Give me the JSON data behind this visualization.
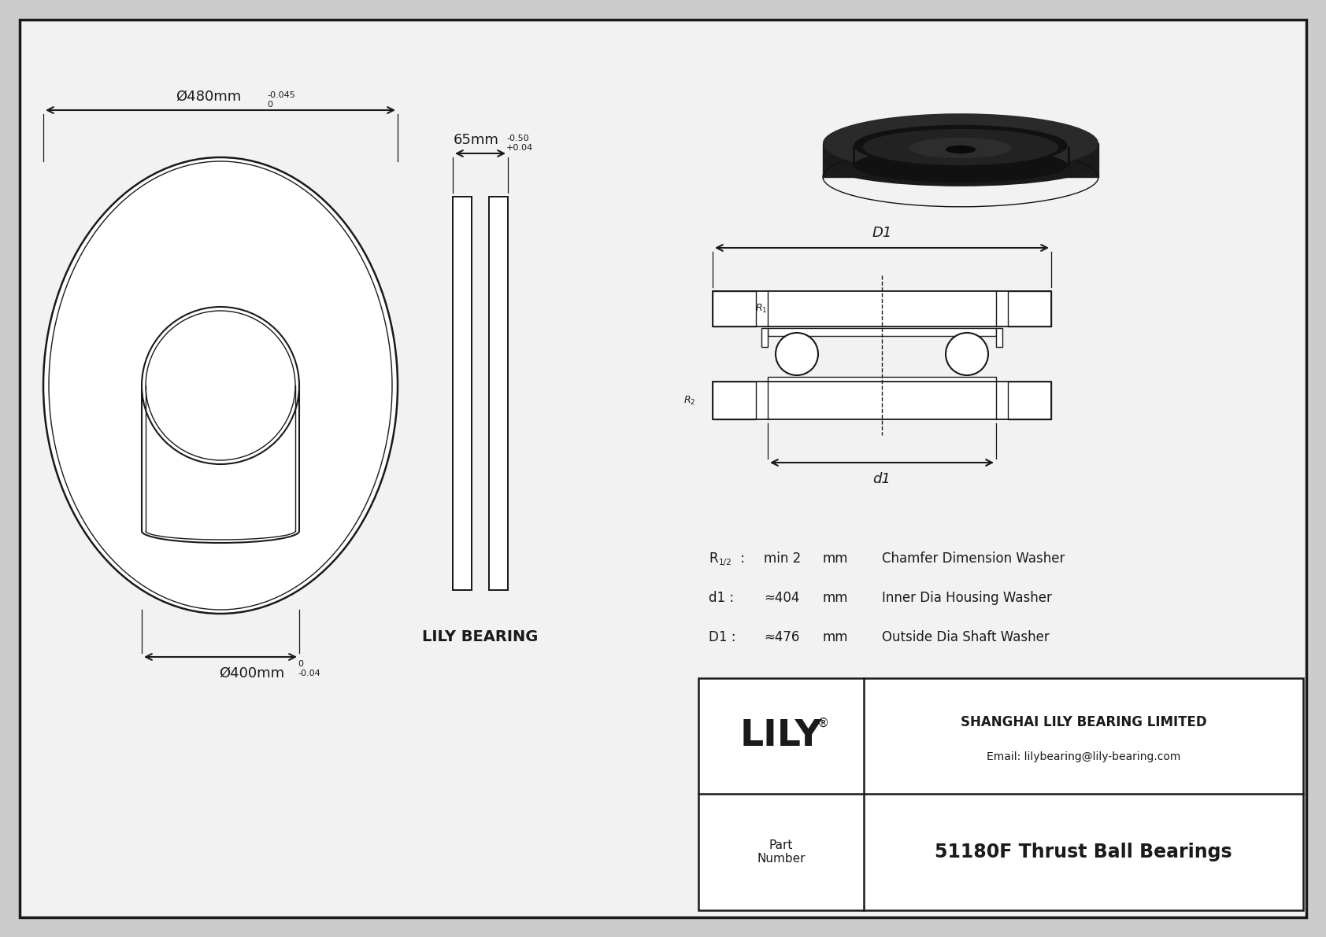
{
  "bg_color": "#cccccc",
  "paper_color": "#f2f2f2",
  "line_color": "#1a1a1a",
  "title": "51180F Thrust Ball Bearings",
  "company": "SHANGHAI LILY BEARING LIMITED",
  "email": "Email: lilybearing@lily-bearing.com",
  "part_label": "Part\nNumber",
  "lily_text": "LILY",
  "lily_bearing_text": "LILY BEARING",
  "dim_outer": "Ø480mm",
  "dim_outer_tol_top": "0",
  "dim_outer_tol_bot": "-0.045",
  "dim_inner": "Ø400mm",
  "dim_inner_tol_top": "0",
  "dim_inner_tol_bot": "-0.04",
  "dim_width": "65mm",
  "dim_width_tol_top": "+0.04",
  "dim_width_tol_bot": "-0.50",
  "spec1_label": "R",
  "spec1_sub": "1/2",
  "spec1_val": "min 2",
  "spec1_unit": "mm",
  "spec1_desc": "Chamfer Dimension Washer",
  "spec2_label": "d1 :",
  "spec2_val": "≈404",
  "spec2_unit": "mm",
  "spec2_desc": "Inner Dia Housing Washer",
  "spec3_label": "D1 :",
  "spec3_val": "≈476",
  "spec3_unit": "mm",
  "spec3_desc": "Outside Dia Shaft Washer"
}
